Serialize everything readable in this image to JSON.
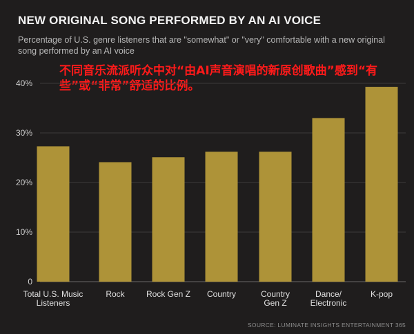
{
  "chart_data": {
    "type": "bar",
    "title": "NEW ORIGINAL SONG PERFORMED BY AN AI VOICE",
    "subtitle": "Percentage of U.S. genre listeners that are \"somewhat\" or \"very\" comfortable with a new original song performed by an AI voice",
    "annotation": "不同音乐流派听众中对“由AI声音演唱的新原创歌曲”感到“有些”或“非常”舒适的比例。",
    "source": "SOURCE: LUMINATE INSIGHTS ENTERTAINMENT 365",
    "categories": [
      [
        "Total U.S. Music",
        "Listeners"
      ],
      [
        "Rock"
      ],
      [
        "Rock Gen Z"
      ],
      [
        "Country"
      ],
      [
        "Country",
        "Gen Z"
      ],
      [
        "Dance/",
        "Electronic"
      ],
      [
        "K-pop"
      ]
    ],
    "values": [
      27.3,
      24.1,
      25.1,
      26.2,
      26.2,
      33.0,
      39.3
    ],
    "ylim": [
      0,
      40
    ],
    "yticks": [
      "0",
      "10%",
      "20%",
      "30%",
      "40%"
    ],
    "ytick_values": [
      0,
      10,
      20,
      30,
      40
    ],
    "grid": true,
    "bar_color": "#ae9338",
    "grid_color": "#3d3b3b"
  }
}
